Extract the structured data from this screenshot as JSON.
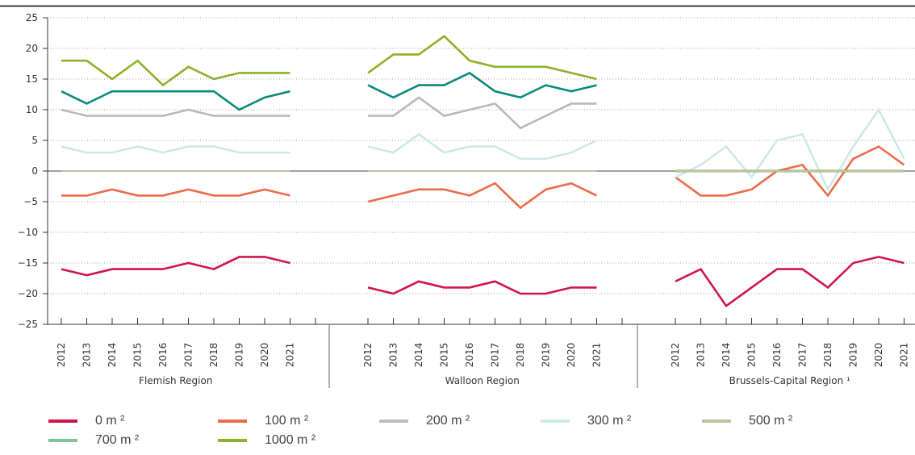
{
  "chart_data": {
    "type": "line",
    "ylim": [
      -25,
      25
    ],
    "y_ticks": [
      "25",
      "20",
      "15",
      "10",
      "5",
      "0",
      "−5",
      "−10",
      "−15",
      "−20",
      "−25"
    ],
    "grid": "horizontal dotted",
    "legend_placement": "bottom",
    "groups": [
      {
        "label": "Flemish Region",
        "x": [
          "2012",
          "2013",
          "2014",
          "2015",
          "2016",
          "2017",
          "2018",
          "2019",
          "2020",
          "2021"
        ],
        "series": [
          {
            "name": "0 m²",
            "values": [
              -16,
              -17,
              -16,
              -16,
              -16,
              -15,
              -16,
              -14,
              -14,
              -15
            ]
          },
          {
            "name": "100 m²",
            "values": [
              -4,
              -4,
              -3,
              -4,
              -4,
              -3,
              -4,
              -4,
              -3,
              -4
            ]
          },
          {
            "name": "200 m²",
            "values": [
              10,
              9,
              9,
              9,
              9,
              10,
              9,
              9,
              9,
              9
            ]
          },
          {
            "name": "300 m²",
            "values": [
              4,
              3,
              3,
              4,
              3,
              4,
              4,
              3,
              3,
              3
            ]
          },
          {
            "name": "500 m²",
            "values": [
              0,
              0,
              0,
              0,
              0,
              0,
              0,
              0,
              0,
              0
            ]
          },
          {
            "name": "700 m²",
            "values": [
              13,
              11,
              13,
              13,
              13,
              13,
              13,
              10,
              12,
              13
            ]
          },
          {
            "name": "1000 m²",
            "values": [
              18,
              18,
              15,
              18,
              14,
              17,
              15,
              16,
              16,
              16
            ]
          }
        ]
      },
      {
        "label": "Walloon Region",
        "x": [
          "2012",
          "2013",
          "2014",
          "2015",
          "2016",
          "2017",
          "2018",
          "2019",
          "2020",
          "2021"
        ],
        "series": [
          {
            "name": "0 m²",
            "values": [
              -19,
              -20,
              -18,
              -19,
              -19,
              -18,
              -20,
              -20,
              -19,
              -19
            ]
          },
          {
            "name": "100 m²",
            "values": [
              -5,
              -4,
              -3,
              -3,
              -4,
              -2,
              -6,
              -3,
              -2,
              -4
            ]
          },
          {
            "name": "200 m²",
            "values": [
              9,
              9,
              12,
              9,
              10,
              11,
              7,
              9,
              11,
              11
            ]
          },
          {
            "name": "300 m²",
            "values": [
              4,
              3,
              6,
              3,
              4,
              4,
              2,
              2,
              3,
              5
            ]
          },
          {
            "name": "500 m²",
            "values": [
              0,
              0,
              0,
              0,
              0,
              0,
              0,
              0,
              0,
              0
            ]
          },
          {
            "name": "700 m²",
            "values": [
              14,
              12,
              14,
              14,
              16,
              13,
              12,
              14,
              13,
              14
            ]
          },
          {
            "name": "1000 m²",
            "values": [
              16,
              19,
              19,
              22,
              18,
              17,
              17,
              17,
              16,
              15
            ]
          }
        ]
      },
      {
        "label": "Brussels-Capital Region ¹",
        "x": [
          "2012",
          "2013",
          "2014",
          "2015",
          "2016",
          "2017",
          "2018",
          "2019",
          "2020",
          "2021"
        ],
        "series": [
          {
            "name": "0 m²",
            "values": [
              -18,
              -16,
              -22,
              -19,
              -16,
              -16,
              -19,
              -15,
              -14,
              -15
            ]
          },
          {
            "name": "100 m²",
            "values": [
              -1,
              -4,
              -4,
              -3,
              0,
              1,
              -4,
              2,
              4,
              1
            ]
          },
          {
            "name": "200 m²",
            "values": [
              0,
              0,
              0,
              0,
              0,
              0,
              0,
              0,
              0,
              0
            ]
          },
          {
            "name": "300 m²",
            "values": [
              -1,
              1,
              4,
              -1,
              5,
              6,
              -3,
              4,
              10,
              2
            ]
          },
          {
            "name": "500 m²",
            "values": [
              0,
              0,
              0,
              0,
              0,
              0,
              0,
              0,
              0,
              0
            ]
          },
          {
            "name": "700 m²",
            "values": [
              0,
              0,
              0,
              0,
              0,
              0,
              0,
              0,
              0,
              0
            ]
          },
          {
            "name": "1000 m²",
            "values": [
              0,
              0,
              0,
              0,
              0,
              0,
              0,
              0,
              0,
              0
            ]
          }
        ]
      }
    ],
    "legend": [
      {
        "name": "0 m²",
        "display": "0 m ²",
        "color": "#d0154a"
      },
      {
        "name": "100 m²",
        "display": "100 m ²",
        "color": "#eb6b4a"
      },
      {
        "name": "200 m²",
        "display": "200 m ²",
        "color": "#bdbdbd"
      },
      {
        "name": "300 m²",
        "display": "300 m ²",
        "color": "#cde8e8"
      },
      {
        "name": "500 m²",
        "display": "500 m ²",
        "color": "#c4bfa2"
      },
      {
        "name": "700 m²",
        "display": "700 m ²",
        "color": "#7fc39a"
      },
      {
        "name": "1000 m²",
        "display": "1000 m ²",
        "color": "#8cb12a"
      }
    ],
    "colors_by_series": {
      "0 m²": "#d0154a",
      "100 m²": "#eb6b4a",
      "200 m²": "#b9b9b9",
      "300 m²": "#cde8e8",
      "500 m²": "#c4bfa2",
      "700 m²": "#0a8a7d",
      "1000 m²": "#8cb12a"
    }
  }
}
